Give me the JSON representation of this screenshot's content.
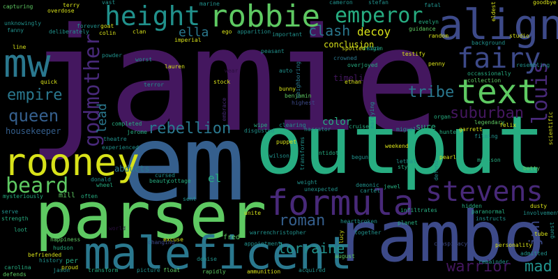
{
  "palette": {
    "purple": "#44175f",
    "violet": "#482979",
    "indigo": "#3d4a89",
    "blue": "#355f8d",
    "teal": "#2a788e",
    "cyan": "#21918c",
    "green": "#27ad81",
    "lime": "#5ec962",
    "yellow": "#d8e219",
    "dark": "#2b0f3e"
  },
  "words": {
    "jamie": "jamie",
    "output": "output",
    "em": "em",
    "rambo": "rambo",
    "parser": "parser",
    "maleficent": "maleficent",
    "rooney": "rooney",
    "formula": "formula",
    "align": "align",
    "robbie": "robbie",
    "height": "height",
    "text": "text",
    "stevens": "stevens",
    "mw": "mw",
    "fairy": "fairy",
    "emperor": "emperor",
    "beard": "beard",
    "godmother": "godmother",
    "louis": "louis",
    "queen": "queen",
    "empire": "empire",
    "rebellion": "rebellion",
    "suburban": "suburban",
    "tribe": "tribe",
    "warrior": "warrior",
    "roman": "roman",
    "lorraine": "lorraine",
    "mad": "mad",
    "jun": "jun",
    "clash": "clash",
    "ella": "ella",
    "decoy": "decoy",
    "color": "color",
    "el": "el",
    "lead": "lead",
    "housekeeper": "housekeeper",
    "timeline": "timeline",
    "conclusion": "conclusion",
    "stefan": "stefan",
    "evelyn": "evelyn",
    "guidance": "guidance",
    "overjoyed": "overjoyed",
    "crowned": "crowned",
    "origin": "origin",
    "testify": "testify",
    "penny": "penny",
    "background": "background",
    "resembling": "resembling",
    "occassionally": "occassionally",
    "collection": "collection",
    "studio": "studio",
    "random": "random",
    "sure": "sure",
    "miguel": "miguel",
    "cruise": "cruise",
    "hunted": "hunted",
    "garrett": "garrett",
    "felix": "felix",
    "legendary": "legendary",
    "filming": "filming",
    "weekend": "weekend",
    "lethal": "lethal",
    "style": "style",
    "madison": "madison",
    "betty": "betty",
    "wilson": "wilson",
    "begun": "begun",
    "antidote": "antidote",
    "narrator": "narrator",
    "clearing": "clearing",
    "disgusted": "disgusted",
    "wipe": "wipe",
    "jerome": "jerome",
    "completed": "completed",
    "theatre": "theatre",
    "experienced": "experienced",
    "abducts": "abducts",
    "donald": "donald",
    "cursed": "cursed",
    "beauty": "beauty",
    "cottage": "cottage",
    "wheel": "wheel",
    "mill": "mill",
    "often": "often",
    "serve": "serve",
    "strength": "strength",
    "mysteriously": "mysteriously",
    "loot": "loot",
    "happiness": "happiness",
    "hudson": "hudson",
    "befriended": "befriended",
    "history": "history",
    "per": "per",
    "proud": "proud",
    "jason": "jason",
    "carolina": "carolina",
    "defends": "defends",
    "transform": "transform",
    "picture": "picture",
    "float": "float",
    "rapidly": "rapidly",
    "denise": "denise",
    "ammunition": "ammunition",
    "acquired": "acquired",
    "august": "august",
    "lucy": "lucy",
    "together": "together",
    "heartbroken": "heartbroken",
    "planet": "planet",
    "infiltrates": "infiltrates",
    "instructs": "instructs",
    "paranormal": "paranormal",
    "hidden": "hidden",
    "dusty": "dusty",
    "involvement": "involvement",
    "personality": "personality",
    "admitted": "admitted",
    "tube": "tube",
    "remainder": "remainder",
    "guest": "guest",
    "fred": "fred",
    "appointment": "appointment",
    "christopher": "christopher",
    "warren": "warren",
    "unite": "unite",
    "excuse": "excuse",
    "unexpected": "unexpected",
    "demonic": "demonic",
    "jewel": "jewel",
    "cartel": "cartel",
    "weight": "weight",
    "defend": "defend",
    "puppet": "puppet",
    "transforms": "transforms",
    "bunny": "bunny",
    "benjamin": "benjamin",
    "ethan": "ethan",
    "stock": "stock",
    "terror": "terror",
    "lauren": "lauren",
    "imperial": "imperial",
    "ego": "ego",
    "apparition": "apparition",
    "important": "important",
    "auto": "auto",
    "neighboring": "neighboring",
    "spotted": "spotted",
    "size": "size",
    "peasant": "peasant",
    "worst": "worst",
    "powder": "powder",
    "quick": "quick",
    "clan": "clan",
    "colin": "colin",
    "goat": "goat",
    "forever": "forever",
    "deliberately": "deliberately",
    "capturing": "capturing",
    "unknowingly": "unknowingly",
    "fanny": "fanny",
    "overdose": "overdose",
    "terry": "terry",
    "vast": "vast",
    "marine": "marine",
    "fatal": "fatal",
    "cameron": "cameron",
    "goodbye": "goodbye",
    "eldest": "eldest",
    "pearl": "pearl",
    "line": "line",
    "scientific": "scientific",
    "organ": "organ",
    "marrying": "marrying",
    "conspiracy": "conspiracy",
    "highest": "highest",
    "embrace": "embrace",
    "changing": "changing",
    "sent": "sent",
    "world": "world",
    "wear": "wear",
    "f": "f"
  }
}
